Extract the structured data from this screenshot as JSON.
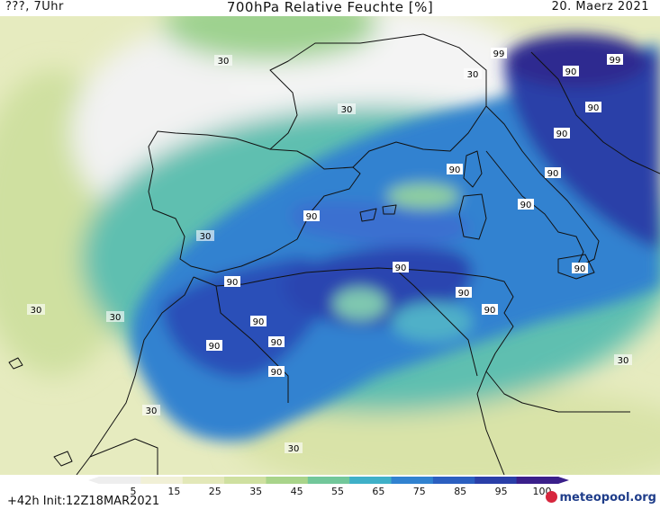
{
  "header": {
    "left": "???, 7Uhr",
    "title": "700hPa Relative Feuchte [%]",
    "date": "20. Maerz 2021"
  },
  "footer": {
    "run_info": "+42h Init:12Z18MAR2021",
    "logo_text": "meteopool.org"
  },
  "legend": {
    "ticks": [
      "5",
      "15",
      "25",
      "35",
      "45",
      "55",
      "65",
      "75",
      "85",
      "95",
      "100"
    ],
    "colors": [
      "#eeeeee",
      "#f1f0d6",
      "#e3e8b8",
      "#cfe0a0",
      "#a9d48a",
      "#72c79a",
      "#3fb0c8",
      "#3182d0",
      "#2b5fc0",
      "#2a3fa8",
      "#3a1f8a"
    ]
  },
  "contour_labels": [
    "30",
    "30",
    "30",
    "30",
    "30",
    "30",
    "30",
    "30",
    "30",
    "90",
    "90",
    "90",
    "90",
    "90",
    "90",
    "90",
    "90",
    "90",
    "90",
    "90",
    "90",
    "90",
    "90",
    "90",
    "90",
    "99",
    "99"
  ],
  "colors": {
    "land_dry": "#f4f4f4",
    "coast": "#111111"
  }
}
